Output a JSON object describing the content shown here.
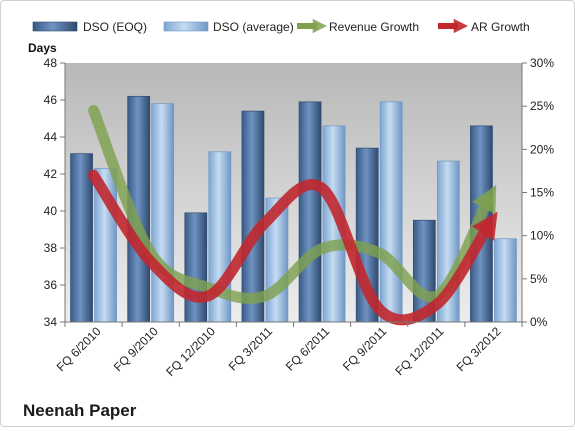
{
  "company": "Neenah Paper",
  "chart_data": {
    "type": "bar",
    "categories": [
      "FQ 6/2010",
      "FQ 9/2010",
      "FQ 12/2010",
      "FQ 3/2011",
      "FQ 6/2011",
      "FQ 9/2011",
      "FQ 12/2011",
      "FQ 3/2012"
    ],
    "ylabel": "Days",
    "ylim": [
      34,
      48
    ],
    "yticks": [
      34,
      36,
      38,
      40,
      42,
      44,
      46,
      48
    ],
    "y2lim": [
      0,
      30
    ],
    "y2ticks": [
      "0%",
      "5%",
      "10%",
      "15%",
      "20%",
      "25%",
      "30%"
    ],
    "y2tick_values": [
      0,
      5,
      10,
      15,
      20,
      25,
      30
    ],
    "legend_position": "top",
    "grid": false,
    "series": [
      {
        "name": "DSO (EOQ)",
        "kind": "bar",
        "axis": "left",
        "color": "#4d6f9e",
        "values": [
          43.1,
          46.2,
          39.9,
          45.4,
          45.9,
          43.4,
          39.5,
          44.6
        ]
      },
      {
        "name": "DSO (average)",
        "kind": "bar",
        "axis": "left",
        "color": "#9dbfe2",
        "values": [
          42.3,
          45.8,
          43.2,
          40.7,
          44.6,
          45.9,
          42.7,
          38.5
        ]
      },
      {
        "name": "Revenue Growth",
        "kind": "line",
        "axis": "right",
        "unit": "%",
        "color": "#7fa14f",
        "values": [
          24.5,
          8.0,
          4.0,
          3.0,
          8.5,
          8.0,
          3.0,
          14.0
        ]
      },
      {
        "name": "AR Growth",
        "kind": "line",
        "axis": "right",
        "unit": "%",
        "color": "#c1272d",
        "values": [
          17.0,
          7.0,
          3.0,
          11.5,
          15.5,
          1.5,
          2.0,
          11.0
        ]
      }
    ]
  }
}
